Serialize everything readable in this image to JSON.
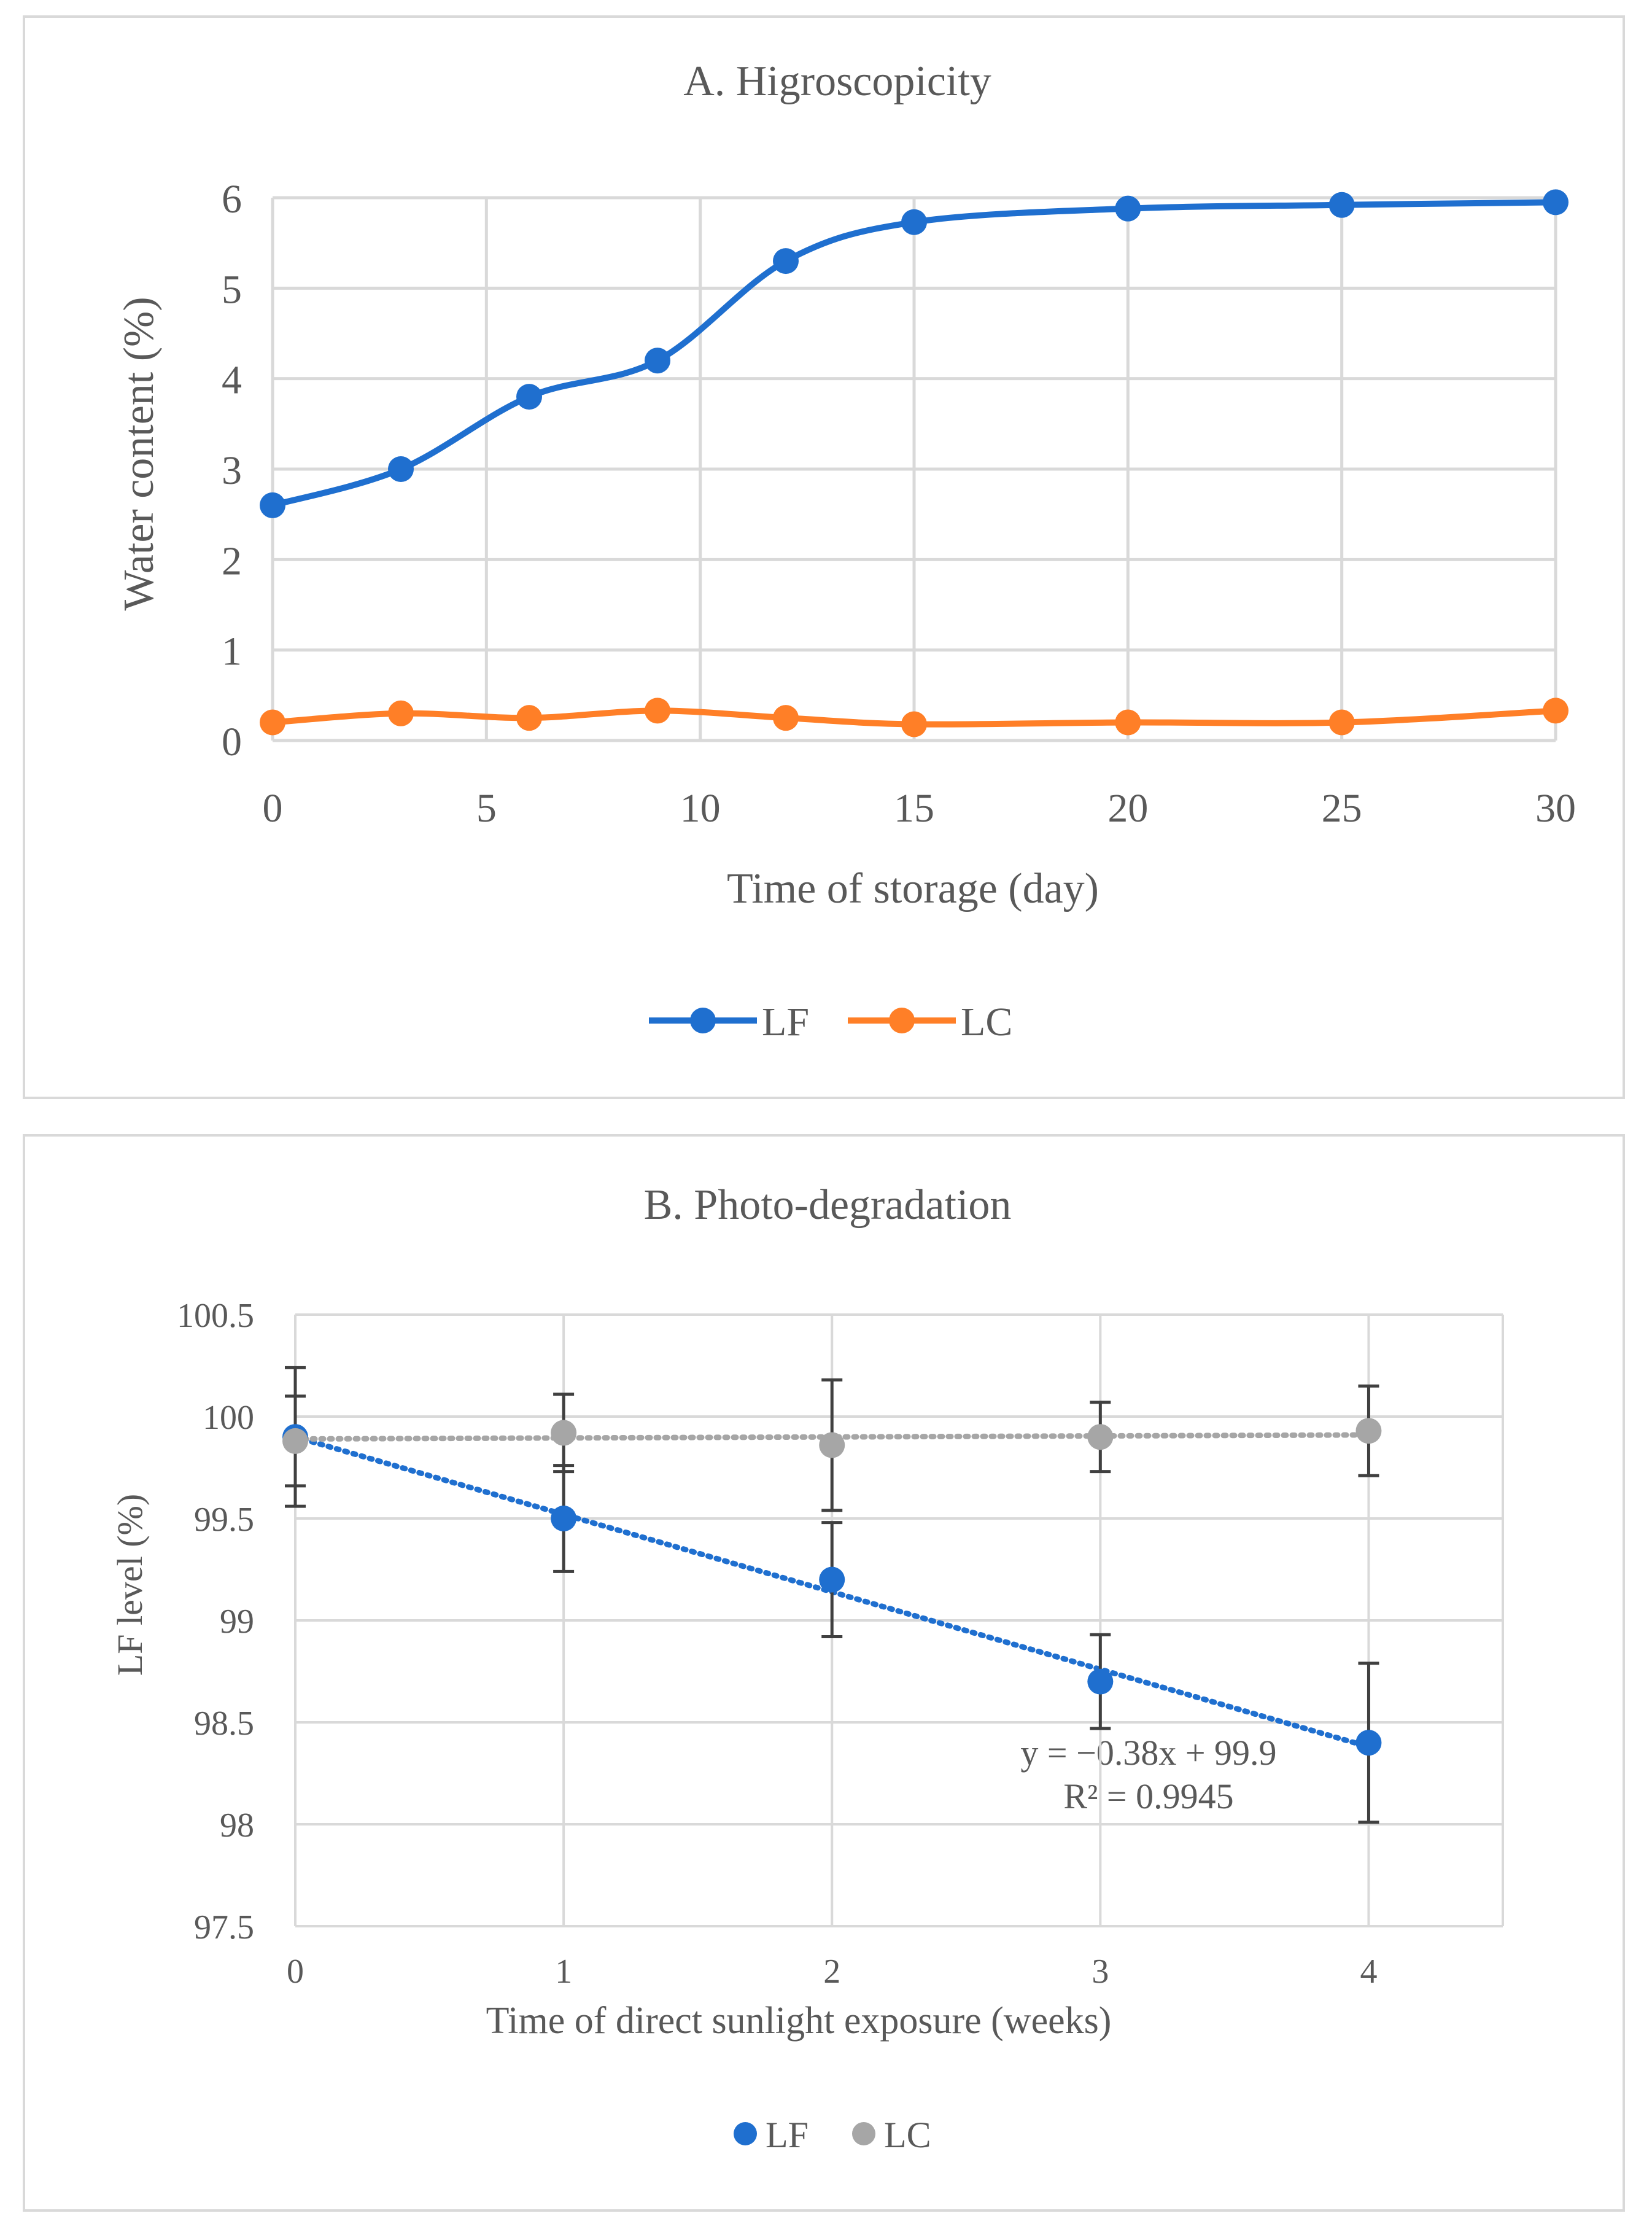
{
  "chart_data": [
    {
      "type": "line",
      "title": "A. Higroscopicity",
      "xlabel": "Time of storage (day)",
      "ylabel": "Water content (%)",
      "xlim": [
        0,
        30
      ],
      "ylim": [
        0,
        6
      ],
      "x_ticks": [
        0,
        5,
        10,
        15,
        20,
        25,
        30
      ],
      "y_ticks": [
        0,
        1,
        2,
        3,
        4,
        5,
        6
      ],
      "grid": true,
      "smoothed": true,
      "legend": "bottom-center",
      "x": [
        0,
        3,
        6,
        9,
        12,
        15,
        20,
        25,
        30
      ],
      "series": [
        {
          "name": "LF",
          "color": "#1f6fcf",
          "values": [
            2.6,
            3.0,
            3.8,
            4.2,
            5.3,
            5.73,
            5.88,
            5.92,
            5.95
          ]
        },
        {
          "name": "LC",
          "color": "#ff7f27",
          "values": [
            0.2,
            0.3,
            0.25,
            0.33,
            0.25,
            0.18,
            0.2,
            0.2,
            0.33
          ]
        }
      ]
    },
    {
      "type": "scatter",
      "title": "B. Photo-degradation",
      "xlabel": "Time of direct sunlight exposure (weeks)",
      "ylabel": "LF level (%)",
      "xlim": [
        0,
        4.5
      ],
      "ylim": [
        97.5,
        100.5
      ],
      "x_ticks": [
        0,
        1,
        2,
        3,
        4
      ],
      "y_ticks": [
        "97.5",
        "98",
        "98.5",
        "99",
        "99.5",
        "100",
        "100.5"
      ],
      "grid": true,
      "legend": "bottom-center",
      "x": [
        0,
        1,
        2,
        3,
        4
      ],
      "series": [
        {
          "name": "LF",
          "color": "#1f6fcf",
          "values": [
            99.9,
            99.5,
            99.2,
            98.7,
            98.4
          ],
          "error": [
            0.34,
            0.26,
            0.28,
            0.23,
            0.39
          ]
        },
        {
          "name": "LC",
          "color": "#a6a6a6",
          "values": [
            99.88,
            99.92,
            99.86,
            99.9,
            99.93
          ],
          "error": [
            0.22,
            0.19,
            0.32,
            0.17,
            0.22
          ]
        }
      ],
      "trendlines": [
        {
          "series": "LF",
          "slope": -0.38,
          "intercept": 99.9,
          "color": "#1f6fcf"
        },
        {
          "series": "LC",
          "slope": 0.005,
          "intercept": 99.89,
          "color": "#a6a6a6"
        }
      ],
      "annotation": {
        "equation": "y = −0.38x + 99.9",
        "r2": "R² = 0.9945"
      }
    }
  ]
}
